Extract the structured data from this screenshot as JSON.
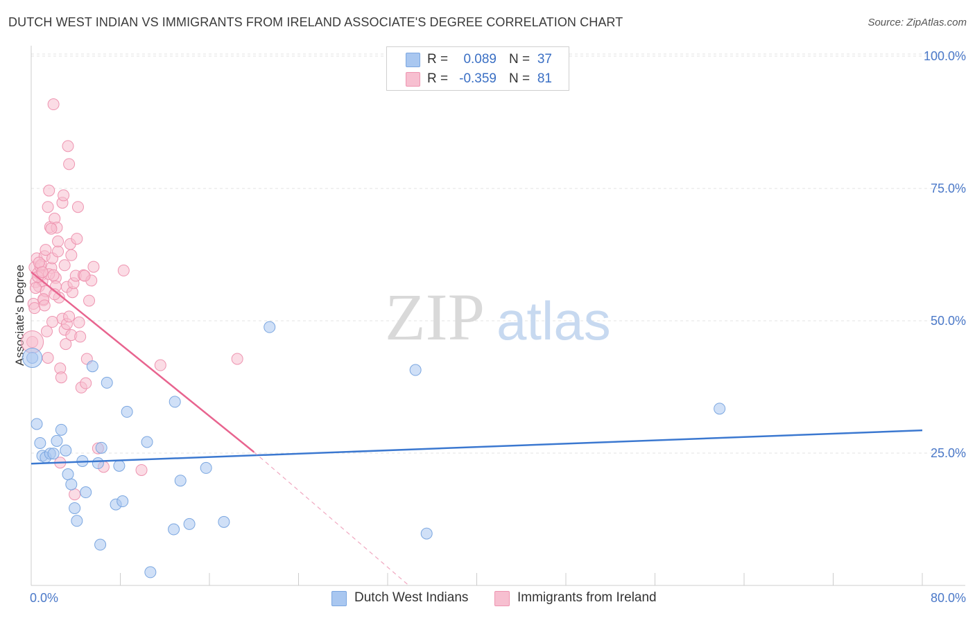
{
  "title": "DUTCH WEST INDIAN VS IMMIGRANTS FROM IRELAND ASSOCIATE'S DEGREE CORRELATION CHART",
  "source": "Source: ZipAtlas.com",
  "watermark": {
    "zip": "ZIP",
    "atlas": "atlas"
  },
  "stats": [
    {
      "r_label": "R =",
      "r_value": "0.089",
      "n_label": "N =",
      "n_value": "37",
      "color": "#a9c7f0",
      "border": "#7aa6e0"
    },
    {
      "r_label": "R =",
      "r_value": "-0.359",
      "n_label": "N =",
      "n_value": "81",
      "color": "#f7bfd0",
      "border": "#ee94b0"
    }
  ],
  "legend": [
    {
      "label": "Dutch West Indians",
      "color": "#a9c7f0",
      "border": "#7aa6e0"
    },
    {
      "label": "Immigrants from Ireland",
      "color": "#f7bfd0",
      "border": "#ee94b0"
    }
  ],
  "colors": {
    "blue": "#3b78d0",
    "pink": "#e8648f",
    "blue_fill": "#a9c7f0",
    "pink_fill": "#f7bfd0",
    "grid": "#e3e3e3"
  },
  "chart_data": {
    "type": "scatter",
    "title": "DUTCH WEST INDIAN VS IMMIGRANTS FROM IRELAND ASSOCIATE'S DEGREE CORRELATION CHART",
    "xlabel": "",
    "ylabel": "Associate's Degree",
    "xlim": [
      0,
      80
    ],
    "ylim": [
      0,
      101
    ],
    "x_tick_labels": [
      "0.0%",
      "80.0%"
    ],
    "y_ticks": [
      25,
      50,
      75,
      100
    ],
    "y_tick_labels": [
      "25.0%",
      "50.0%",
      "75.0%",
      "100.0%"
    ],
    "grid": true,
    "legend_position": "bottom",
    "series": [
      {
        "name": "Dutch West Indians",
        "color": "#3b78d0",
        "points": [
          [
            0.5,
            30.5
          ],
          [
            0.8,
            26.9
          ],
          [
            1.0,
            24.5
          ],
          [
            1.3,
            24.2
          ],
          [
            1.7,
            24.9
          ],
          [
            2.0,
            24.9
          ],
          [
            2.3,
            27.3
          ],
          [
            2.7,
            29.4
          ],
          [
            3.1,
            25.5
          ],
          [
            3.3,
            21.0
          ],
          [
            3.6,
            19.1
          ],
          [
            3.9,
            14.6
          ],
          [
            4.1,
            12.2
          ],
          [
            4.6,
            23.5
          ],
          [
            4.9,
            17.6
          ],
          [
            5.5,
            41.4
          ],
          [
            6.0,
            23.1
          ],
          [
            6.2,
            7.7
          ],
          [
            6.3,
            26.0
          ],
          [
            6.8,
            38.3
          ],
          [
            7.6,
            15.3
          ],
          [
            7.9,
            22.6
          ],
          [
            8.2,
            15.9
          ],
          [
            8.6,
            32.8
          ],
          [
            10.4,
            27.1
          ],
          [
            10.7,
            2.5
          ],
          [
            12.8,
            10.6
          ],
          [
            12.9,
            34.7
          ],
          [
            13.4,
            19.8
          ],
          [
            14.2,
            11.6
          ],
          [
            15.7,
            22.2
          ],
          [
            17.3,
            12.0
          ],
          [
            21.4,
            48.8
          ],
          [
            34.5,
            40.7
          ],
          [
            35.5,
            9.8
          ],
          [
            61.8,
            33.4
          ],
          [
            0.1,
            43.0
          ]
        ],
        "trend": {
          "x": [
            0,
            80
          ],
          "y": [
            23.0,
            29.3
          ]
        }
      },
      {
        "name": "Immigrants from Ireland",
        "color": "#e8648f",
        "points": [
          [
            0.2,
            53.2
          ],
          [
            0.3,
            60.1
          ],
          [
            0.4,
            57.3
          ],
          [
            0.5,
            61.8
          ],
          [
            0.6,
            59.0
          ],
          [
            0.7,
            56.5
          ],
          [
            0.8,
            60.3
          ],
          [
            0.9,
            58.6
          ],
          [
            1.0,
            57.5
          ],
          [
            1.1,
            53.9
          ],
          [
            1.2,
            62.2
          ],
          [
            1.3,
            55.6
          ],
          [
            1.4,
            48.0
          ],
          [
            1.5,
            71.5
          ],
          [
            1.6,
            74.6
          ],
          [
            1.7,
            67.7
          ],
          [
            1.8,
            60.0
          ],
          [
            1.9,
            61.8
          ],
          [
            2.0,
            90.9
          ],
          [
            2.1,
            69.3
          ],
          [
            2.2,
            58.1
          ],
          [
            2.3,
            67.6
          ],
          [
            2.4,
            63.1
          ],
          [
            2.5,
            54.4
          ],
          [
            2.6,
            41.0
          ],
          [
            2.7,
            39.3
          ],
          [
            2.8,
            72.3
          ],
          [
            2.9,
            73.7
          ],
          [
            3.0,
            48.3
          ],
          [
            3.1,
            45.6
          ],
          [
            3.2,
            56.4
          ],
          [
            3.3,
            83.0
          ],
          [
            3.4,
            79.6
          ],
          [
            3.5,
            64.5
          ],
          [
            3.6,
            47.3
          ],
          [
            3.7,
            55.4
          ],
          [
            3.8,
            57.1
          ],
          [
            3.9,
            17.2
          ],
          [
            4.0,
            58.5
          ],
          [
            4.1,
            65.5
          ],
          [
            4.2,
            71.5
          ],
          [
            4.4,
            47.0
          ],
          [
            4.5,
            37.4
          ],
          [
            4.7,
            58.6
          ],
          [
            4.9,
            38.2
          ],
          [
            5.0,
            42.8
          ],
          [
            5.2,
            53.8
          ],
          [
            5.4,
            57.6
          ],
          [
            5.6,
            60.2
          ],
          [
            6.0,
            25.9
          ],
          [
            6.5,
            22.4
          ],
          [
            8.3,
            59.5
          ],
          [
            9.9,
            21.8
          ],
          [
            11.6,
            41.6
          ],
          [
            18.5,
            42.8
          ],
          [
            0.1,
            46.0
          ],
          [
            0.3,
            52.4
          ],
          [
            0.6,
            58.3
          ],
          [
            0.9,
            60.6
          ],
          [
            1.1,
            54.1
          ],
          [
            1.3,
            63.4
          ],
          [
            1.6,
            58.8
          ],
          [
            1.8,
            67.4
          ],
          [
            2.0,
            58.6
          ],
          [
            2.2,
            56.5
          ],
          [
            2.4,
            65.0
          ],
          [
            2.6,
            23.2
          ],
          [
            2.8,
            50.4
          ],
          [
            3.0,
            60.5
          ],
          [
            3.2,
            49.4
          ],
          [
            3.4,
            50.8
          ],
          [
            3.6,
            62.4
          ],
          [
            0.4,
            56.2
          ],
          [
            0.7,
            61.0
          ],
          [
            1.0,
            59.2
          ],
          [
            1.2,
            52.9
          ],
          [
            1.5,
            43.0
          ],
          [
            1.9,
            49.8
          ],
          [
            2.1,
            55.0
          ],
          [
            4.3,
            49.7
          ],
          [
            4.8,
            58.5
          ]
        ],
        "trend": {
          "x": [
            0,
            20.0
          ],
          "y": [
            59.2,
            25.2
          ]
        },
        "trend_extension": {
          "x": [
            20.0,
            33.9
          ],
          "y": [
            25.2,
            0
          ]
        }
      }
    ]
  }
}
